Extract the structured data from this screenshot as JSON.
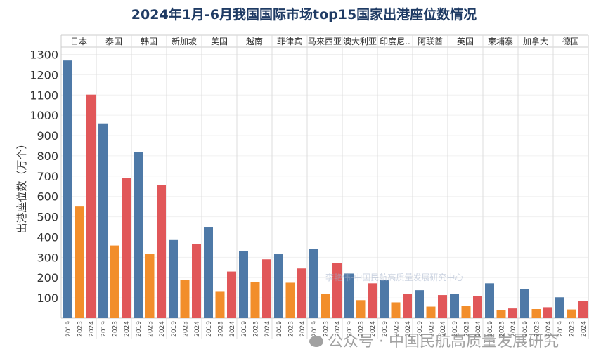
{
  "chart_data": {
    "type": "bar",
    "title": "2024年1月-6月我国国际市场top15国家出港座位数情况",
    "ylabel": "出港座位数（万个）",
    "xlabel": "",
    "ylim": [
      0,
      1300
    ],
    "yticks": [
      100,
      200,
      300,
      400,
      500,
      600,
      700,
      800,
      900,
      1000,
      1100,
      1200,
      1300
    ],
    "grid": true,
    "categories": [
      "日本",
      "泰国",
      "韩国",
      "新加坡",
      "美国",
      "越南",
      "菲律宾",
      "马来西亚",
      "澳大利亚",
      "印度尼..",
      "阿联酋",
      "英国",
      "柬埔寨",
      "加拿大",
      "德国"
    ],
    "years": [
      "2019",
      "2023",
      "2024"
    ],
    "series": [
      {
        "name": "2019",
        "color": "#4e79a7",
        "values": [
          1270,
          960,
          820,
          385,
          450,
          330,
          315,
          340,
          220,
          190,
          138,
          118,
          172,
          144,
          103
        ]
      },
      {
        "name": "2023",
        "color": "#f28e2b",
        "values": [
          550,
          358,
          315,
          190,
          130,
          180,
          175,
          120,
          89,
          78,
          57,
          60,
          40,
          45,
          43
        ]
      },
      {
        "name": "2024",
        "color": "#e15759",
        "values": [
          1102,
          690,
          655,
          365,
          230,
          290,
          245,
          270,
          172,
          120,
          114,
          110,
          48,
          54,
          85
        ]
      }
    ]
  },
  "watermarks": {
    "author": "李艳伟-中国民航高质量发展研究中心",
    "account": "公众号 · 中国民航高质量发展研究"
  }
}
